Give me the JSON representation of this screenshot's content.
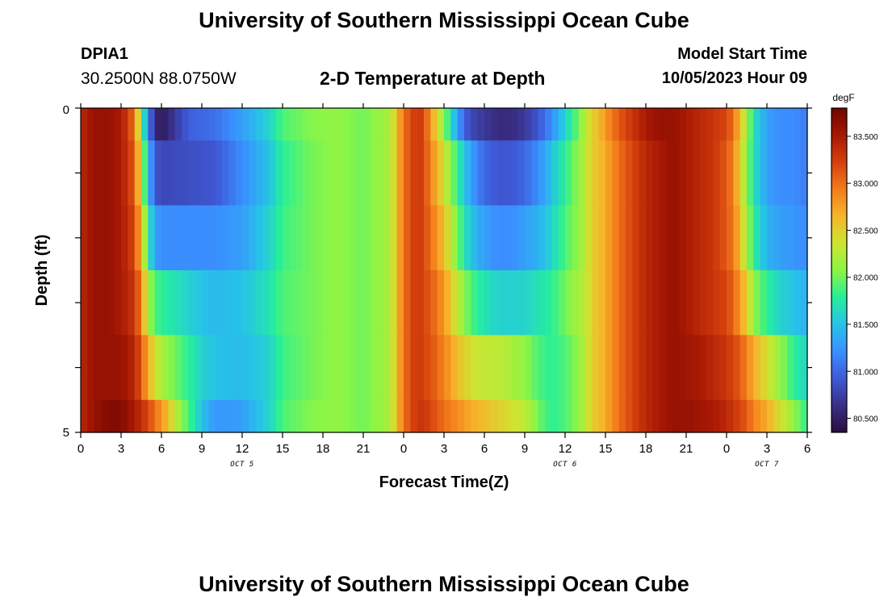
{
  "page": {
    "title": "University of Southern Mississippi Ocean Cube",
    "station": "DPIA1",
    "coordinates": "30.2500N  88.0750W",
    "plot_title": "2-D Temperature at Depth",
    "model_start_label": "Model Start Time",
    "model_start_value": "10/05/2023 Hour 09",
    "footer_title": "University of Southern Mississippi Ocean Cube"
  },
  "chart_data": {
    "type": "heatmap",
    "title": "2-D Temperature at Depth",
    "xlabel": "Forecast Time(Z)",
    "ylabel": "Depth (ft)",
    "x_range_hours": [
      0,
      54
    ],
    "y_range": [
      0,
      5
    ],
    "y_ticks": [
      "0",
      "5"
    ],
    "x_tick_labels": [
      "0",
      "3",
      "6",
      "9",
      "12",
      "15",
      "18",
      "21",
      "0",
      "3",
      "6",
      "9",
      "12",
      "15",
      "18",
      "21",
      "0",
      "3",
      "6"
    ],
    "day_labels": [
      {
        "text": "OCT 5",
        "hour": 12
      },
      {
        "text": "OCT 6",
        "hour": 36
      },
      {
        "text": "OCT 7",
        "hour": 51
      }
    ],
    "colorbar": {
      "unit": "degF",
      "min": 80.35,
      "max": 83.8,
      "ticks": [
        "80.500",
        "81.000",
        "81.500",
        "82.000",
        "82.500",
        "83.000",
        "83.500"
      ],
      "colors": [
        "#2a0f3c",
        "#3a2f88",
        "#3f5ad8",
        "#3a90ff",
        "#27c3e8",
        "#25ef9a",
        "#8cf545",
        "#cde531",
        "#f6b52b",
        "#f47b1b",
        "#d4400d",
        "#a71804",
        "#6e0600"
      ]
    },
    "depth_layers": [
      0,
      0.5,
      1.5,
      2.5,
      3.5,
      4.5
    ],
    "temperature_profiles": [
      {
        "depth": 0,
        "hours": [
          0,
          1,
          2,
          3,
          4,
          4.5,
          5,
          5.5,
          6,
          7,
          8,
          9,
          10,
          12,
          14,
          15,
          17,
          19,
          21,
          23,
          24,
          25,
          25.5,
          26,
          27,
          27.5,
          28,
          28.5,
          29,
          30,
          31,
          32,
          33,
          34,
          35,
          36,
          37,
          37.5,
          38,
          38.5,
          39,
          40,
          41,
          42,
          43,
          44,
          45,
          46,
          47,
          48,
          48.5,
          49,
          49.5,
          50,
          51,
          52,
          53,
          54
        ],
        "temps": [
          83.4,
          83.6,
          83.6,
          83.5,
          83.0,
          82.0,
          81.2,
          80.6,
          80.45,
          80.7,
          80.95,
          81.0,
          81.05,
          81.3,
          81.6,
          81.9,
          82.05,
          82.1,
          82.0,
          82.2,
          83.0,
          83.3,
          83.2,
          82.8,
          82.1,
          81.7,
          81.3,
          81.0,
          80.8,
          80.7,
          80.6,
          80.6,
          80.7,
          80.9,
          81.2,
          81.6,
          82.0,
          82.3,
          82.5,
          82.6,
          82.8,
          83.1,
          83.3,
          83.5,
          83.6,
          83.6,
          83.5,
          83.4,
          83.3,
          83.2,
          83.0,
          82.6,
          82.2,
          81.7,
          81.3,
          81.2,
          81.2,
          81.1
        ]
      },
      {
        "depth": 0.5,
        "hours": [
          0,
          1,
          2,
          3,
          4,
          4.5,
          5,
          5.5,
          6,
          8,
          10,
          12,
          14,
          15,
          17,
          19,
          21,
          23,
          24,
          25,
          25.5,
          26,
          27,
          28,
          29,
          30,
          31,
          32,
          33,
          34,
          35,
          36,
          37,
          37.5,
          38,
          39,
          40,
          41,
          42,
          43,
          44,
          45,
          46,
          47,
          48,
          48.5,
          49,
          49.5,
          50,
          51,
          52,
          53,
          54
        ],
        "temps": [
          83.4,
          83.6,
          83.6,
          83.5,
          83.1,
          82.3,
          81.5,
          80.9,
          80.8,
          80.85,
          80.9,
          81.2,
          81.5,
          81.8,
          82.0,
          82.1,
          82.0,
          82.2,
          83.0,
          83.3,
          83.2,
          82.9,
          82.4,
          81.8,
          81.3,
          81.0,
          80.9,
          80.9,
          81.0,
          81.2,
          81.5,
          81.8,
          82.1,
          82.3,
          82.5,
          82.7,
          83.0,
          83.2,
          83.4,
          83.5,
          83.6,
          83.5,
          83.4,
          83.3,
          83.1,
          82.9,
          82.5,
          82.1,
          81.7,
          81.3,
          81.2,
          81.2,
          81.1
        ]
      },
      {
        "depth": 1.5,
        "hours": [
          0,
          1,
          2,
          3,
          4,
          4.5,
          5,
          5.5,
          6,
          8,
          10,
          12,
          14,
          15,
          17,
          19,
          21,
          23,
          24,
          25,
          25.5,
          26,
          27,
          28,
          29,
          30,
          31,
          32,
          33,
          34,
          35,
          36,
          37,
          37.5,
          38,
          39,
          40,
          41,
          42,
          43,
          44,
          45,
          46,
          47,
          48,
          48.5,
          49,
          49.5,
          50,
          51,
          52,
          53,
          54
        ],
        "temps": [
          83.4,
          83.6,
          83.6,
          83.5,
          83.2,
          82.6,
          81.8,
          81.3,
          81.2,
          81.2,
          81.2,
          81.3,
          81.6,
          81.85,
          82.0,
          82.1,
          82.0,
          82.2,
          83.0,
          83.3,
          83.2,
          83.0,
          82.6,
          82.0,
          81.5,
          81.3,
          81.2,
          81.2,
          81.3,
          81.4,
          81.6,
          81.9,
          82.1,
          82.3,
          82.5,
          82.7,
          83.0,
          83.2,
          83.4,
          83.5,
          83.6,
          83.5,
          83.4,
          83.3,
          83.1,
          82.95,
          82.6,
          82.2,
          81.8,
          81.4,
          81.3,
          81.25,
          81.2
        ]
      },
      {
        "depth": 2.5,
        "hours": [
          0,
          1,
          2,
          3,
          4,
          4.5,
          5,
          5.5,
          6,
          7,
          8,
          9,
          10,
          12,
          14,
          15,
          17,
          19,
          21,
          23,
          24,
          25,
          25.5,
          26,
          27,
          28,
          29,
          30,
          31,
          32,
          33,
          34,
          35,
          36,
          37,
          37.5,
          38,
          39,
          40,
          41,
          42,
          43,
          44,
          45,
          46,
          47,
          48,
          48.5,
          49,
          49.5,
          50,
          51,
          52,
          53,
          54
        ],
        "temps": [
          83.4,
          83.6,
          83.6,
          83.5,
          83.3,
          82.9,
          82.2,
          81.9,
          81.8,
          81.7,
          81.6,
          81.5,
          81.45,
          81.5,
          81.7,
          81.9,
          82.0,
          82.1,
          82.0,
          82.2,
          83.0,
          83.3,
          83.2,
          83.1,
          82.8,
          82.3,
          81.9,
          81.7,
          81.6,
          81.6,
          81.6,
          81.7,
          81.8,
          82.0,
          82.2,
          82.3,
          82.5,
          82.7,
          83.0,
          83.2,
          83.4,
          83.5,
          83.6,
          83.5,
          83.4,
          83.3,
          83.2,
          83.05,
          82.8,
          82.5,
          82.1,
          81.8,
          81.6,
          81.5,
          81.4
        ]
      },
      {
        "depth": 3.5,
        "hours": [
          0,
          1,
          2,
          3,
          4,
          4.5,
          5,
          5.5,
          6,
          7,
          8,
          9,
          10,
          12,
          14,
          15,
          17,
          19,
          21,
          23,
          24,
          25,
          25.5,
          26,
          27,
          28,
          29,
          30,
          31,
          32,
          33,
          34,
          35,
          36,
          37,
          37.5,
          38,
          39,
          40,
          41,
          42,
          43,
          44,
          45,
          46,
          47,
          48,
          48.5,
          49,
          49.5,
          50,
          51,
          52,
          53,
          54
        ],
        "temps": [
          83.4,
          83.6,
          83.6,
          83.6,
          83.4,
          83.1,
          82.7,
          82.4,
          82.2,
          82.0,
          81.8,
          81.6,
          81.5,
          81.45,
          81.6,
          81.85,
          82.0,
          82.1,
          82.0,
          82.2,
          83.0,
          83.3,
          83.2,
          83.15,
          82.9,
          82.6,
          82.4,
          82.3,
          82.3,
          82.2,
          82.1,
          81.9,
          81.8,
          81.9,
          82.1,
          82.3,
          82.5,
          82.7,
          83.0,
          83.2,
          83.4,
          83.5,
          83.6,
          83.55,
          83.5,
          83.4,
          83.3,
          83.2,
          83.1,
          82.9,
          82.7,
          82.4,
          82.1,
          81.8,
          81.6
        ]
      },
      {
        "depth": 4.5,
        "hours": [
          0,
          1,
          2,
          3,
          4,
          4.5,
          5,
          5.5,
          6,
          6.5,
          7,
          8,
          9,
          10,
          12,
          14,
          15,
          17,
          19,
          21,
          23,
          24,
          25,
          25.5,
          26,
          27,
          28,
          29,
          30,
          31,
          32,
          33,
          34,
          35,
          36,
          37,
          37.5,
          38,
          39,
          40,
          41,
          42,
          43,
          44,
          45,
          46,
          47,
          48,
          48.5,
          49,
          49.5,
          50,
          51,
          52,
          53,
          54
        ],
        "temps": [
          83.4,
          83.6,
          83.7,
          83.7,
          83.5,
          83.35,
          83.2,
          83.0,
          82.8,
          82.6,
          82.3,
          81.9,
          81.5,
          81.25,
          81.3,
          81.6,
          81.9,
          82.05,
          82.1,
          82.0,
          82.2,
          83.0,
          83.3,
          83.3,
          83.2,
          83.0,
          82.85,
          82.7,
          82.6,
          82.5,
          82.4,
          82.3,
          82.0,
          81.8,
          81.9,
          82.1,
          82.3,
          82.5,
          82.7,
          83.0,
          83.2,
          83.4,
          83.5,
          83.6,
          83.6,
          83.55,
          83.5,
          83.4,
          83.3,
          83.2,
          83.1,
          82.9,
          82.7,
          82.4,
          82.1,
          81.8
        ]
      }
    ]
  }
}
